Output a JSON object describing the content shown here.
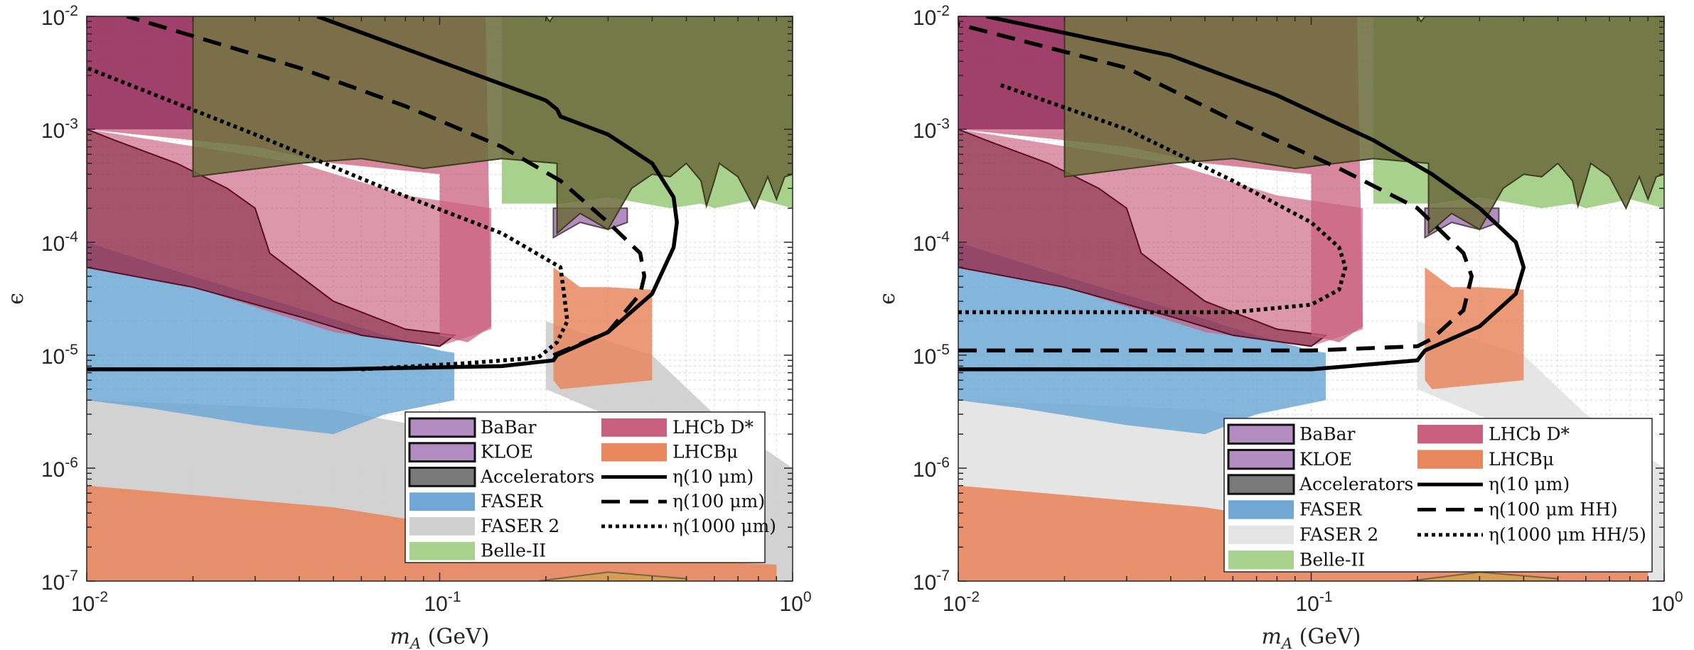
{
  "chart_data": [
    {
      "type": "area",
      "panel": "left",
      "xlabel": "m_A (GeV)",
      "ylabel": "ϵ",
      "xscale": "log",
      "yscale": "log",
      "xlim": [
        0.01,
        1
      ],
      "ylim": [
        1e-07,
        0.01
      ],
      "x_ticks": [
        "10^-2",
        "10^-1",
        "10^0"
      ],
      "y_ticks": [
        "10^-7",
        "10^-6",
        "10^-5",
        "10^-4",
        "10^-3",
        "10^-2"
      ],
      "grid": "minor dashed",
      "legend_position": "bottom-right",
      "regions": [
        {
          "name": "BaBar",
          "color": "#b38cc2"
        },
        {
          "name": "KLOE",
          "color": "#b38cc2"
        },
        {
          "name": "Accelerators",
          "color": "#7a7a7a"
        },
        {
          "name": "FASER",
          "color": "#6fa8d4"
        },
        {
          "name": "FASER 2",
          "color": "#d0d0d0"
        },
        {
          "name": "Belle-II",
          "color": "#a9d18e"
        },
        {
          "name": "LHCb D*",
          "color": "#c9607f"
        },
        {
          "name": "LHCBμ",
          "color": "#e8875e"
        }
      ],
      "series": [
        {
          "name": "η(10 μm)",
          "style": "solid",
          "x": [
            0.01,
            0.05,
            0.15,
            0.21,
            0.215,
            0.3,
            0.4,
            0.46,
            0.47,
            0.46,
            0.4,
            0.3,
            0.22,
            0.215,
            0.2,
            0.1,
            0.045
          ],
          "y": [
            7.5e-06,
            7.5e-06,
            8e-06,
            9e-06,
            1e-05,
            1.6e-05,
            3.5e-05,
            9e-05,
            0.00015,
            0.00025,
            0.0005,
            0.0009,
            0.0013,
            0.0015,
            0.0018,
            0.004,
            0.01
          ]
        },
        {
          "name": "η(100 μm)",
          "style": "dashed",
          "x": [
            0.21,
            0.3,
            0.37,
            0.38,
            0.37,
            0.3,
            0.22,
            0.15,
            0.08,
            0.04,
            0.013
          ],
          "y": [
            1e-05,
            1.6e-05,
            3.5e-05,
            5e-05,
            8e-05,
            0.00015,
            0.00035,
            0.0007,
            0.0016,
            0.0035,
            0.01
          ]
        },
        {
          "name": "η(1000 μm)",
          "style": "dotted",
          "x": [
            0.06,
            0.12,
            0.19,
            0.215,
            0.23,
            0.225,
            0.22,
            0.15,
            0.07,
            0.03,
            0.01
          ],
          "y": [
            7.5e-06,
            8.5e-06,
            9.5e-06,
            1.3e-05,
            2e-05,
            3.5e-05,
            6e-05,
            0.00012,
            0.0003,
            0.0009,
            0.0035
          ]
        }
      ]
    },
    {
      "type": "area",
      "panel": "right",
      "xlabel": "m_A (GeV)",
      "ylabel": "ϵ",
      "xscale": "log",
      "yscale": "log",
      "xlim": [
        0.01,
        1
      ],
      "ylim": [
        1e-07,
        0.01
      ],
      "x_ticks": [
        "10^-2",
        "10^-1",
        "10^0"
      ],
      "y_ticks": [
        "10^-7",
        "10^-6",
        "10^-5",
        "10^-4",
        "10^-3",
        "10^-2"
      ],
      "grid": "minor dashed",
      "legend_position": "bottom-right",
      "regions": [
        {
          "name": "BaBar",
          "color": "#b38cc2"
        },
        {
          "name": "KLOE",
          "color": "#b38cc2"
        },
        {
          "name": "Accelerators",
          "color": "#7a7a7a"
        },
        {
          "name": "FASER",
          "color": "#6fa8d4"
        },
        {
          "name": "FASER 2",
          "color": "#e4e4e4"
        },
        {
          "name": "Belle-II",
          "color": "#a9d18e"
        },
        {
          "name": "LHCb D*",
          "color": "#c9607f"
        },
        {
          "name": "LHCBμ",
          "color": "#e8875e"
        }
      ],
      "series": [
        {
          "name": "η(10 μm)",
          "style": "solid",
          "x": [
            0.01,
            0.1,
            0.2,
            0.21,
            0.3,
            0.38,
            0.4,
            0.38,
            0.3,
            0.22,
            0.15,
            0.08,
            0.04,
            0.012
          ],
          "y": [
            7.5e-06,
            7.5e-06,
            9e-06,
            1.1e-05,
            1.8e-05,
            3.5e-05,
            6e-05,
            0.0001,
            0.0002,
            0.0004,
            0.0008,
            0.002,
            0.0045,
            0.01
          ]
        },
        {
          "name": "η(100 μm HH)",
          "style": "dashed",
          "x": [
            0.01,
            0.1,
            0.2,
            0.22,
            0.27,
            0.285,
            0.27,
            0.2,
            0.12,
            0.06,
            0.03,
            0.01
          ],
          "y": [
            1.1e-05,
            1.1e-05,
            1.2e-05,
            1.4e-05,
            2.5e-05,
            5e-05,
            8e-05,
            0.0002,
            0.00045,
            0.0012,
            0.0035,
            0.0085
          ]
        },
        {
          "name": "η(1000 μm HH/5)",
          "style": "dotted",
          "x": [
            0.01,
            0.06,
            0.1,
            0.12,
            0.125,
            0.12,
            0.1,
            0.06,
            0.03,
            0.013
          ],
          "y": [
            2.4e-05,
            2.4e-05,
            2.8e-05,
            3.8e-05,
            6e-05,
            9e-05,
            0.00015,
            0.00035,
            0.001,
            0.0025
          ]
        }
      ]
    }
  ],
  "panels": [
    {
      "xlabel_main": "m",
      "xlabel_sub": "A",
      "xlabel_unit": " (GeV)",
      "ylabel": "ϵ",
      "legend": [
        {
          "label": "BaBar",
          "color": "#b38cc2",
          "kind": "patch"
        },
        {
          "label": "KLOE",
          "color": "#b38cc2",
          "kind": "patch"
        },
        {
          "label": "Accelerators",
          "color": "#7a7a7a",
          "kind": "patch"
        },
        {
          "label": "FASER",
          "color": "#6fa8d4",
          "kind": "patch-nb"
        },
        {
          "label": "FASER 2",
          "color": "#d0d0d0",
          "kind": "patch-nb"
        },
        {
          "label": "Belle-II",
          "color": "#a9d18e",
          "kind": "patch-nb"
        },
        {
          "label": "LHCb D*",
          "color": "#c9607f",
          "kind": "patch-nb"
        },
        {
          "label": "LHCBμ",
          "color": "#e8875e",
          "kind": "patch-nb"
        },
        {
          "label": "η(10 μm)",
          "color": "#000000",
          "kind": "solid"
        },
        {
          "label": "η(100 μm)",
          "color": "#000000",
          "kind": "dashed"
        },
        {
          "label": "η(1000 μm)",
          "color": "#000000",
          "kind": "dotted"
        }
      ]
    },
    {
      "xlabel_main": "m",
      "xlabel_sub": "A",
      "xlabel_unit": " (GeV)",
      "ylabel": "ϵ",
      "legend": [
        {
          "label": "BaBar",
          "color": "#b38cc2",
          "kind": "patch"
        },
        {
          "label": "KLOE",
          "color": "#b38cc2",
          "kind": "patch"
        },
        {
          "label": "Accelerators",
          "color": "#7a7a7a",
          "kind": "patch"
        },
        {
          "label": "FASER",
          "color": "#6fa8d4",
          "kind": "patch-nb"
        },
        {
          "label": "FASER 2",
          "color": "#e4e4e4",
          "kind": "patch-nb"
        },
        {
          "label": "Belle-II",
          "color": "#a9d18e",
          "kind": "patch-nb"
        },
        {
          "label": "LHCb D*",
          "color": "#c9607f",
          "kind": "patch-nb"
        },
        {
          "label": "LHCBμ",
          "color": "#e8875e",
          "kind": "patch-nb"
        },
        {
          "label": "η(10 μm)",
          "color": "#000000",
          "kind": "solid"
        },
        {
          "label": "η(100 μm HH)",
          "color": "#000000",
          "kind": "dashed"
        },
        {
          "label": "η(1000 μm HH/5)",
          "color": "#000000",
          "kind": "dotted"
        }
      ]
    }
  ]
}
